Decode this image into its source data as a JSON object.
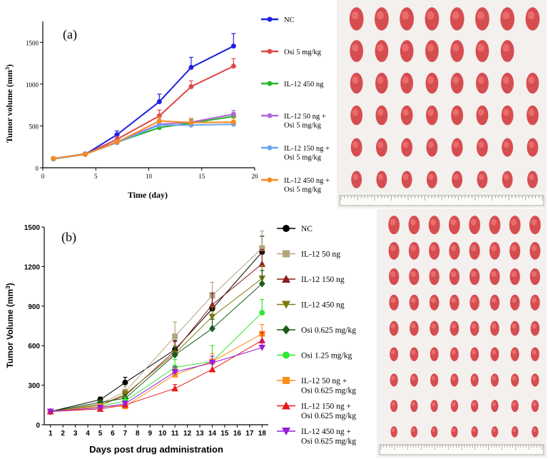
{
  "chart_data": [
    {
      "id": "a",
      "type": "line",
      "panel_label": "(a)",
      "xlabel": "Time (day)",
      "ylabel": "Tumor volume (mm",
      "ylabel_sup": "3",
      "ylabel_close": ")",
      "xlim": [
        0,
        20
      ],
      "ylim": [
        0,
        1750
      ],
      "xticks": [
        0,
        5,
        10,
        15,
        20
      ],
      "yticks": [
        0,
        500,
        1000,
        1500
      ],
      "x": [
        1,
        4,
        7,
        11,
        14,
        18
      ],
      "series": [
        {
          "name": "NC",
          "color": "#1f1fe0",
          "marker": "circle",
          "values": [
            110,
            160,
            395,
            790,
            1200,
            1455
          ],
          "errors": [
            15,
            20,
            45,
            90,
            120,
            150
          ]
        },
        {
          "name": "Osi 5 mg/kg",
          "color": "#e04848",
          "marker": "circle",
          "values": [
            110,
            160,
            340,
            620,
            970,
            1215
          ],
          "errors": [
            15,
            20,
            35,
            70,
            70,
            90
          ]
        },
        {
          "name": "IL-12 450 ng",
          "color": "#2ab52a",
          "marker": "circle",
          "values": [
            105,
            165,
            305,
            480,
            535,
            615
          ],
          "errors": [
            15,
            20,
            30,
            40,
            40,
            40
          ]
        },
        {
          "name": "IL-12 50 ng + Osi 5 mg/kg",
          "color": "#b068d8",
          "marker": "circle",
          "values": [
            110,
            165,
            310,
            520,
            545,
            640
          ],
          "errors": [
            15,
            20,
            30,
            45,
            45,
            45
          ]
        },
        {
          "name": "IL-12 150 ng + Osi 5 mg/kg",
          "color": "#6aa6f0",
          "marker": "circle",
          "values": [
            105,
            160,
            300,
            510,
            510,
            520
          ],
          "errors": [
            15,
            20,
            30,
            40,
            40,
            40
          ]
        },
        {
          "name": "IL-12 450 ng + Osi 5 mg/kg",
          "color": "#f58a1f",
          "marker": "circle",
          "values": [
            110,
            160,
            305,
            560,
            540,
            545
          ],
          "errors": [
            15,
            20,
            30,
            50,
            50,
            50
          ]
        }
      ],
      "legend": [
        {
          "label": "NC"
        },
        {
          "label": "Osi 5 mg/kg"
        },
        {
          "label": "IL-12 450 ng"
        },
        {
          "label": "IL-12 50 ng +",
          "label2": "Osi 5 mg/kg"
        },
        {
          "label": "IL-12 150 ng +",
          "label2": "Osi 5 mg/kg"
        },
        {
          "label": "IL-12 450 ng +",
          "label2": "Osi 5 mg/kg"
        }
      ]
    },
    {
      "id": "b",
      "type": "line",
      "panel_label": "(b)",
      "xlabel": "Days post drug administration",
      "ylabel": "Tumor Volume (mm",
      "ylabel_sup": "3",
      "ylabel_close": ")",
      "xlim": [
        0.5,
        18.5
      ],
      "ylim": [
        0,
        1500
      ],
      "xticks": [
        1,
        2,
        3,
        4,
        5,
        6,
        7,
        8,
        9,
        10,
        11,
        12,
        13,
        14,
        15,
        16,
        17,
        18
      ],
      "yticks": [
        0,
        300,
        600,
        900,
        1200,
        1500
      ],
      "x": [
        1,
        5,
        7,
        11,
        14,
        18
      ],
      "series": [
        {
          "name": "NC",
          "color": "#000000",
          "marker": "circle",
          "values": [
            100,
            190,
            320,
            570,
            880,
            1310
          ],
          "errors": [
            10,
            20,
            40,
            70,
            90,
            120
          ]
        },
        {
          "name": "IL-12 50 ng",
          "color": "#b5a57e",
          "marker": "square",
          "values": [
            100,
            160,
            250,
            670,
            980,
            1340
          ],
          "errors": [
            10,
            20,
            40,
            110,
            100,
            130
          ]
        },
        {
          "name": "IL-12 150 ng",
          "color": "#8b1a1a",
          "marker": "triangle",
          "values": [
            100,
            150,
            220,
            560,
            910,
            1220
          ],
          "errors": [
            10,
            20,
            30,
            70,
            90,
            110
          ]
        },
        {
          "name": "IL-12 450 ng",
          "color": "#7a7a10",
          "marker": "triangle-down",
          "values": [
            100,
            150,
            230,
            540,
            820,
            1110
          ],
          "errors": [
            10,
            20,
            30,
            60,
            80,
            100
          ]
        },
        {
          "name": "Osi 0.625 mg/kg",
          "color": "#1a5c1a",
          "marker": "diamond",
          "values": [
            100,
            170,
            200,
            530,
            730,
            1070
          ],
          "errors": [
            10,
            20,
            30,
            60,
            70,
            100
          ]
        },
        {
          "name": "Osi 1.25 mg/kg",
          "color": "#33e833",
          "marker": "circle",
          "values": [
            100,
            140,
            180,
            435,
            480,
            850
          ],
          "errors": [
            10,
            20,
            30,
            60,
            120,
            100
          ]
        },
        {
          "name": "IL-12 50 ng + Osi 0.625 mg/kg",
          "color": "#ff8c1a",
          "marker": "square",
          "values": [
            100,
            140,
            140,
            380,
            480,
            690
          ],
          "errors": [
            10,
            20,
            20,
            50,
            60,
            70
          ]
        },
        {
          "name": "IL-12 150 ng + Osi 0.625 mg/kg",
          "color": "#e81a1a",
          "marker": "triangle",
          "values": [
            100,
            120,
            150,
            275,
            420,
            640
          ],
          "errors": [
            10,
            15,
            20,
            30,
            50,
            60
          ]
        },
        {
          "name": "IL-12 450 ng + Osi 0.625 mg/kg",
          "color": "#9b1ae0",
          "marker": "triangle-down",
          "values": [
            100,
            130,
            160,
            400,
            470,
            585
          ],
          "errors": [
            10,
            15,
            20,
            40,
            50,
            50
          ]
        }
      ],
      "legend": [
        {
          "label": "NC"
        },
        {
          "label": "IL-12 50 ng"
        },
        {
          "label": "IL-12 150 ng"
        },
        {
          "label": "IL-12 450 ng"
        },
        {
          "label": "Osi 0.625 mg/kg"
        },
        {
          "label": "Osi 1.25 mg/kg"
        },
        {
          "label": "IL-12 50 ng +",
          "label2": "Osi 0.625 mg/kg"
        },
        {
          "label": "IL-12 150 ng +",
          "label2": "Osi 0.625 mg/kg"
        },
        {
          "label": "IL-12 450 ng +",
          "label2": "Osi 0.625 mg/kg"
        }
      ]
    }
  ],
  "photos": {
    "top_rows": [
      8,
      7,
      8,
      8,
      8,
      8
    ],
    "bottom_rows": [
      8,
      8,
      8,
      8,
      8,
      8,
      8,
      8,
      8
    ],
    "tissue_color": "#d2353a",
    "highlight_color": "#f07a78"
  }
}
